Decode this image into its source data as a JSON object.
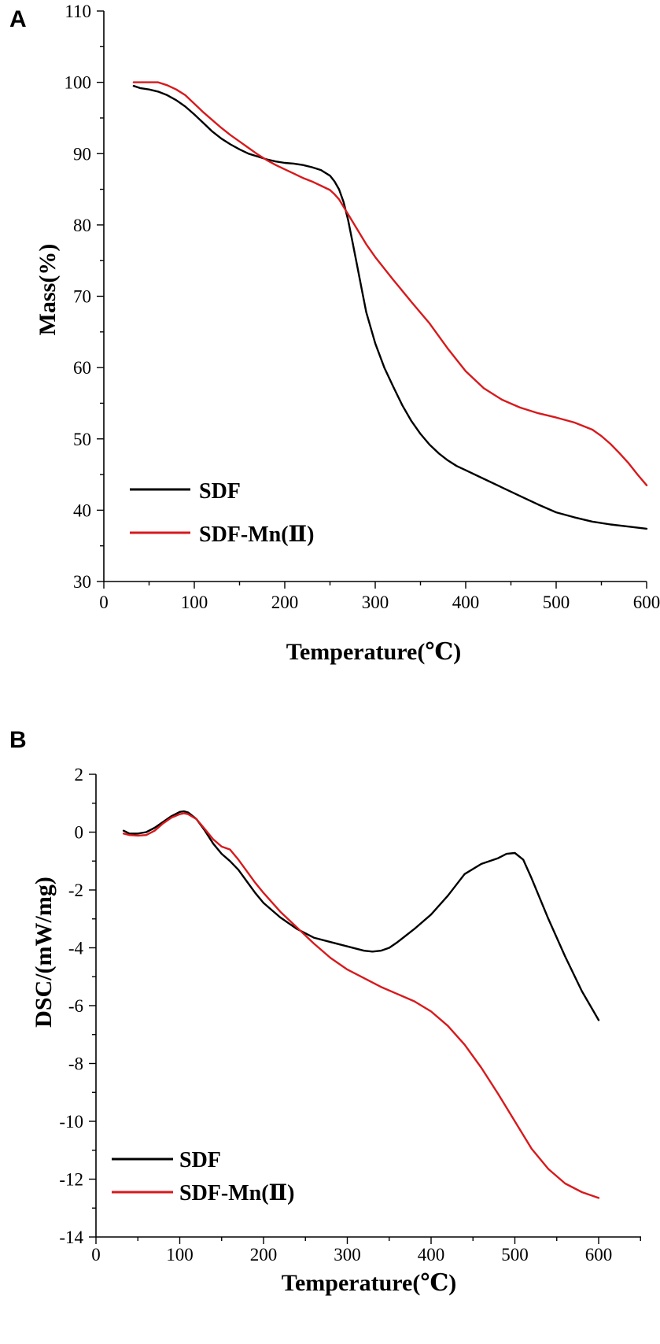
{
  "colors": {
    "sdf": "#000000",
    "sdf_mn": "#d8191c"
  },
  "chart_data": [
    {
      "panel": "A",
      "type": "line",
      "xlabel": "Temperature(℃)",
      "ylabel": "Mass(%)",
      "xlim": [
        0,
        600
      ],
      "ylim": [
        30,
        110
      ],
      "xticks": [
        0,
        100,
        200,
        300,
        400,
        500,
        600
      ],
      "yticks": [
        30,
        40,
        50,
        60,
        70,
        80,
        90,
        100,
        110
      ],
      "legend_position": "bottom-left",
      "series": [
        {
          "name": "SDF",
          "color": "#000000",
          "x": [
            33,
            40,
            50,
            60,
            70,
            80,
            90,
            100,
            110,
            120,
            130,
            140,
            150,
            160,
            170,
            180,
            190,
            200,
            210,
            220,
            230,
            240,
            250,
            255,
            260,
            265,
            270,
            275,
            280,
            285,
            290,
            300,
            310,
            320,
            330,
            340,
            350,
            360,
            370,
            380,
            390,
            400,
            420,
            440,
            460,
            480,
            500,
            520,
            540,
            560,
            580,
            600
          ],
          "y": [
            99.5,
            99.2,
            99,
            98.7,
            98.2,
            97.5,
            96.6,
            95.5,
            94.3,
            93.1,
            92.1,
            91.3,
            90.6,
            90,
            89.6,
            89.2,
            88.9,
            88.7,
            88.6,
            88.4,
            88.1,
            87.7,
            86.9,
            86.1,
            85,
            83.2,
            80.7,
            77.5,
            74.3,
            71,
            67.8,
            63.4,
            60,
            57.3,
            54.7,
            52.5,
            50.7,
            49.2,
            48,
            47,
            46.2,
            45.6,
            44.4,
            43.2,
            42,
            40.8,
            39.7,
            39,
            38.4,
            38,
            37.7,
            37.4
          ]
        },
        {
          "name": "SDF-Mn(Ⅱ)",
          "color": "#d8191c",
          "x": [
            33,
            40,
            50,
            60,
            70,
            80,
            90,
            100,
            110,
            120,
            130,
            140,
            150,
            160,
            170,
            180,
            190,
            200,
            210,
            220,
            230,
            240,
            250,
            255,
            260,
            270,
            280,
            290,
            300,
            320,
            340,
            360,
            380,
            400,
            420,
            440,
            460,
            480,
            500,
            520,
            540,
            550,
            560,
            570,
            580,
            590,
            600
          ],
          "y": [
            100,
            100,
            100,
            100,
            99.6,
            99,
            98.2,
            97,
            95.8,
            94.7,
            93.6,
            92.6,
            91.7,
            90.8,
            89.9,
            89.1,
            88.4,
            87.8,
            87.2,
            86.6,
            86.1,
            85.5,
            84.9,
            84.3,
            83.6,
            81.5,
            79.4,
            77.3,
            75.5,
            72.3,
            69.2,
            66.2,
            62.7,
            59.5,
            57.1,
            55.5,
            54.4,
            53.6,
            53,
            52.3,
            51.3,
            50.4,
            49.3,
            48,
            46.6,
            45,
            43.5
          ]
        }
      ]
    },
    {
      "panel": "B",
      "type": "line",
      "xlabel": "Temperature(℃)",
      "ylabel": "DSC/(mW/mg)",
      "xlim": [
        0,
        650
      ],
      "ylim": [
        -14,
        2
      ],
      "xticks": [
        0,
        100,
        200,
        300,
        400,
        500,
        600
      ],
      "yticks": [
        -14,
        -12,
        -10,
        -8,
        -6,
        -4,
        -2,
        0,
        2
      ],
      "legend_position": "bottom-left",
      "series": [
        {
          "name": "SDF",
          "color": "#000000",
          "x": [
            33,
            40,
            50,
            60,
            70,
            80,
            90,
            100,
            105,
            110,
            120,
            130,
            140,
            150,
            160,
            170,
            180,
            190,
            200,
            220,
            240,
            260,
            280,
            300,
            320,
            330,
            340,
            350,
            360,
            380,
            400,
            420,
            440,
            460,
            480,
            490,
            500,
            510,
            520,
            540,
            560,
            580,
            600
          ],
          "y": [
            0.05,
            -0.05,
            -0.05,
            0,
            0.15,
            0.35,
            0.55,
            0.7,
            0.72,
            0.68,
            0.45,
            0.05,
            -0.4,
            -0.75,
            -1.0,
            -1.3,
            -1.7,
            -2.1,
            -2.45,
            -2.95,
            -3.35,
            -3.65,
            -3.8,
            -3.95,
            -4.1,
            -4.13,
            -4.1,
            -4.0,
            -3.8,
            -3.35,
            -2.85,
            -2.2,
            -1.45,
            -1.1,
            -0.9,
            -0.75,
            -0.72,
            -0.95,
            -1.6,
            -3.0,
            -4.3,
            -5.5,
            -6.5
          ]
        },
        {
          "name": "SDF-Mn(Ⅱ)",
          "color": "#d8191c",
          "x": [
            33,
            40,
            50,
            60,
            70,
            80,
            90,
            100,
            105,
            110,
            120,
            130,
            140,
            150,
            155,
            160,
            170,
            180,
            190,
            200,
            220,
            240,
            260,
            280,
            300,
            320,
            340,
            360,
            380,
            400,
            420,
            440,
            460,
            480,
            500,
            520,
            540,
            560,
            580,
            600
          ],
          "y": [
            -0.05,
            -0.1,
            -0.12,
            -0.1,
            0.05,
            0.3,
            0.5,
            0.62,
            0.65,
            0.62,
            0.45,
            0.1,
            -0.25,
            -0.5,
            -0.55,
            -0.6,
            -0.95,
            -1.35,
            -1.75,
            -2.1,
            -2.75,
            -3.3,
            -3.85,
            -4.35,
            -4.75,
            -5.05,
            -5.35,
            -5.6,
            -5.85,
            -6.2,
            -6.7,
            -7.35,
            -8.15,
            -9.05,
            -10.0,
            -10.95,
            -11.65,
            -12.15,
            -12.45,
            -12.65
          ]
        }
      ]
    }
  ]
}
